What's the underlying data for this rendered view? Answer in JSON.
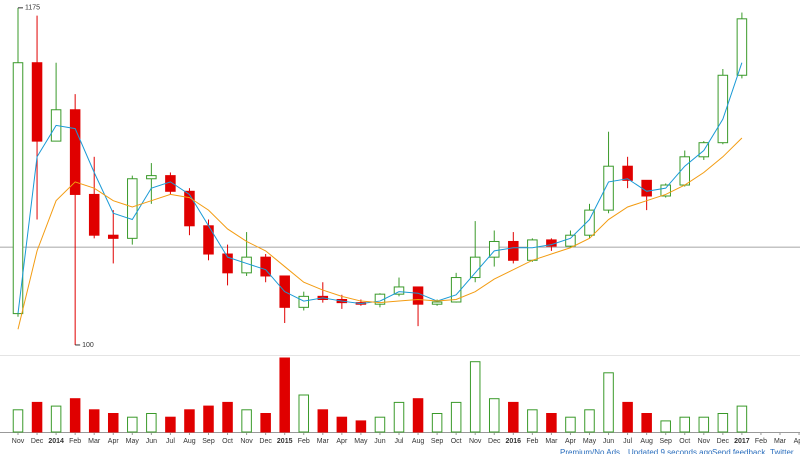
{
  "chart_data": {
    "type": "candlestick",
    "x": [
      0,
      1,
      2,
      3,
      4,
      5,
      6,
      7,
      8,
      9,
      10,
      11,
      12,
      13,
      14,
      15,
      16,
      17,
      18,
      19,
      20,
      21,
      22,
      23,
      24,
      25,
      26,
      27,
      28,
      29,
      30,
      31,
      32,
      33,
      34,
      35,
      36,
      37,
      38
    ],
    "open": [
      200,
      1000,
      750,
      850,
      580,
      450,
      440,
      630,
      640,
      590,
      480,
      390,
      330,
      380,
      320,
      220,
      255,
      245,
      235,
      230,
      262,
      285,
      230,
      237,
      315,
      380,
      430,
      370,
      435,
      415,
      450,
      530,
      670,
      625,
      575,
      610,
      700,
      745,
      960
    ],
    "high": [
      1175,
      1150,
      1000,
      900,
      700,
      530,
      640,
      680,
      650,
      600,
      500,
      420,
      460,
      390,
      320,
      270,
      300,
      260,
      245,
      265,
      315,
      285,
      245,
      330,
      495,
      465,
      460,
      440,
      440,
      465,
      550,
      780,
      700,
      625,
      615,
      720,
      750,
      980,
      1160
    ],
    "low": [
      190,
      500,
      750,
      100,
      440,
      360,
      420,
      550,
      580,
      450,
      370,
      290,
      320,
      300,
      170,
      210,
      235,
      215,
      225,
      220,
      255,
      160,
      225,
      235,
      300,
      350,
      360,
      365,
      400,
      410,
      440,
      520,
      600,
      530,
      570,
      605,
      690,
      740,
      950
    ],
    "close": [
      1000,
      750,
      850,
      580,
      450,
      440,
      630,
      640,
      590,
      480,
      390,
      330,
      380,
      320,
      220,
      255,
      245,
      235,
      230,
      262,
      285,
      230,
      237,
      315,
      380,
      430,
      370,
      435,
      415,
      450,
      530,
      670,
      625,
      575,
      610,
      700,
      745,
      960,
      1140
    ],
    "up_color": "#3a9a2a",
    "down_color": "#e00000",
    "series": [
      {
        "color": "#1a9ad6",
        "values": [
          200,
          700,
          800,
          790,
          650,
          520,
          500,
          600,
          620,
          580,
          480,
          380,
          360,
          340,
          270,
          240,
          250,
          240,
          232,
          240,
          270,
          265,
          240,
          260,
          330,
          400,
          410,
          410,
          420,
          440,
          500,
          620,
          630,
          590,
          600,
          670,
          720,
          820,
          1000
        ]
      },
      {
        "color": "#f39c12",
        "values": [
          150,
          400,
          560,
          620,
          600,
          560,
          540,
          560,
          580,
          570,
          530,
          470,
          430,
          400,
          350,
          300,
          275,
          255,
          240,
          235,
          240,
          245,
          240,
          245,
          270,
          310,
          340,
          370,
          390,
          410,
          440,
          500,
          540,
          560,
          580,
          610,
          650,
          700,
          760
        ]
      }
    ],
    "volume": [
      30,
      40,
      35,
      45,
      30,
      25,
      20,
      25,
      20,
      30,
      35,
      40,
      30,
      25,
      100,
      50,
      30,
      20,
      15,
      20,
      40,
      45,
      25,
      40,
      95,
      45,
      40,
      30,
      25,
      20,
      30,
      80,
      40,
      25,
      15,
      20,
      20,
      25,
      35
    ],
    "volume_ylim": [
      0,
      100
    ],
    "reference_line": 412,
    "high_label": 1175,
    "low_label": 100,
    "ylim": [
      68,
      1200
    ],
    "xlim": [
      -0.945,
      41.05
    ],
    "xticks": [
      {
        "value": 0,
        "label": "Nov"
      },
      {
        "value": 1,
        "label": "Dec"
      },
      {
        "value": 2,
        "label": "2014"
      },
      {
        "value": 3,
        "label": "Feb"
      },
      {
        "value": 4,
        "label": "Mar"
      },
      {
        "value": 5,
        "label": "Apr"
      },
      {
        "value": 6,
        "label": "May"
      },
      {
        "value": 7,
        "label": "Jun"
      },
      {
        "value": 8,
        "label": "Jul"
      },
      {
        "value": 9,
        "label": "Aug"
      },
      {
        "value": 10,
        "label": "Sep"
      },
      {
        "value": 11,
        "label": "Oct"
      },
      {
        "value": 12,
        "label": "Nov"
      },
      {
        "value": 13,
        "label": "Dec"
      },
      {
        "value": 14,
        "label": "2015"
      },
      {
        "value": 15,
        "label": "Feb"
      },
      {
        "value": 16,
        "label": "Mar"
      },
      {
        "value": 17,
        "label": "Apr"
      },
      {
        "value": 18,
        "label": "May"
      },
      {
        "value": 19,
        "label": "Jun"
      },
      {
        "value": 20,
        "label": "Jul"
      },
      {
        "value": 21,
        "label": "Aug"
      },
      {
        "value": 22,
        "label": "Sep"
      },
      {
        "value": 23,
        "label": "Oct"
      },
      {
        "value": 24,
        "label": "Nov"
      },
      {
        "value": 25,
        "label": "Dec"
      },
      {
        "value": 26,
        "label": "2016"
      },
      {
        "value": 27,
        "label": "Feb"
      },
      {
        "value": 28,
        "label": "Mar"
      },
      {
        "value": 29,
        "label": "Apr"
      },
      {
        "value": 30,
        "label": "May"
      },
      {
        "value": 31,
        "label": "Jun"
      },
      {
        "value": 32,
        "label": "Jul"
      },
      {
        "value": 33,
        "label": "Aug"
      },
      {
        "value": 34,
        "label": "Sep"
      },
      {
        "value": 35,
        "label": "Oct"
      },
      {
        "value": 36,
        "label": "Nov"
      },
      {
        "value": 37,
        "label": "Dec"
      },
      {
        "value": 38,
        "label": "2017"
      },
      {
        "value": 39,
        "label": "Feb"
      },
      {
        "value": 40,
        "label": "Mar"
      },
      {
        "value": 41,
        "label": "Apr"
      }
    ],
    "footer": [
      "Premium/No Ads",
      "Updated 9 seconds ago",
      "Send feedback",
      "Twitter"
    ]
  }
}
